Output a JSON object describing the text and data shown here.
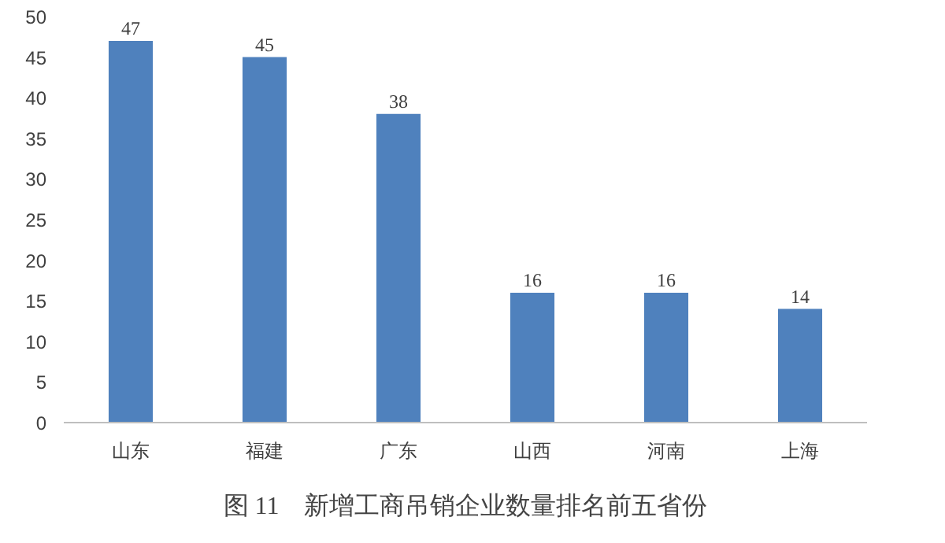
{
  "chart_data": {
    "type": "bar",
    "title": "图 11　新增工商吊销企业数量排名前五省份",
    "categories": [
      "山东",
      "福建",
      "广东",
      "山西",
      "河南",
      "上海"
    ],
    "values": [
      47,
      45,
      38,
      16,
      16,
      14
    ],
    "color": "#4f81bd",
    "ylim": [
      0,
      50
    ],
    "yticks": [
      0,
      5,
      10,
      15,
      20,
      25,
      30,
      35,
      40,
      45,
      50
    ],
    "data_labels": true
  }
}
